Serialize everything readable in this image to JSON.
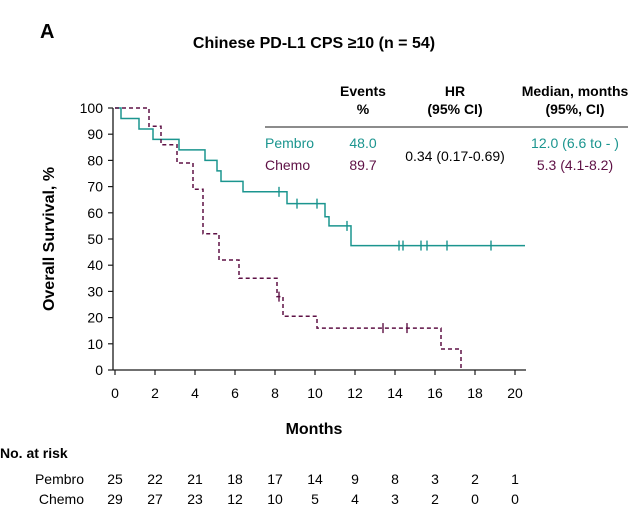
{
  "panel_label": "A",
  "chart_data": {
    "type": "line",
    "subtype": "kaplan-meier",
    "title": "Chinese PD-L1 CPS ≥10 (n = 54)",
    "xlabel": "Months",
    "ylabel": "Overall Survival, %",
    "xlim": [
      0,
      20.5
    ],
    "ylim": [
      0,
      100
    ],
    "xticks": [
      0,
      2,
      4,
      6,
      8,
      10,
      12,
      14,
      16,
      18,
      20
    ],
    "yticks": [
      0,
      10,
      20,
      30,
      40,
      50,
      60,
      70,
      80,
      90,
      100
    ],
    "grid": false,
    "series": [
      {
        "name": "Pembro",
        "color": "#1b958f",
        "line_style": "solid",
        "points": [
          [
            0,
            100
          ],
          [
            0.3,
            100
          ],
          [
            0.3,
            96
          ],
          [
            1.2,
            96
          ],
          [
            1.2,
            92
          ],
          [
            1.9,
            92
          ],
          [
            1.9,
            88
          ],
          [
            3.2,
            88
          ],
          [
            3.2,
            84
          ],
          [
            4.5,
            84
          ],
          [
            4.5,
            80
          ],
          [
            5.1,
            80
          ],
          [
            5.1,
            76
          ],
          [
            5.3,
            76
          ],
          [
            5.3,
            72
          ],
          [
            6.4,
            72
          ],
          [
            6.4,
            68
          ],
          [
            8.6,
            68
          ],
          [
            8.6,
            63.5
          ],
          [
            10.5,
            63.5
          ],
          [
            10.5,
            58.5
          ],
          [
            10.7,
            58.5
          ],
          [
            10.7,
            55
          ],
          [
            11.8,
            55
          ],
          [
            11.8,
            47.5
          ],
          [
            20.5,
            47.5
          ]
        ],
        "censor_x": [
          8.2,
          9.1,
          10.1,
          11.6,
          14.2,
          14.4,
          15.3,
          15.6,
          16.6,
          18.8
        ]
      },
      {
        "name": "Chemo",
        "color": "#5e1045",
        "line_style": "dashed",
        "points": [
          [
            0,
            100
          ],
          [
            1.7,
            100
          ],
          [
            1.7,
            93
          ],
          [
            2.3,
            93
          ],
          [
            2.3,
            86
          ],
          [
            3.1,
            86
          ],
          [
            3.1,
            79
          ],
          [
            3.9,
            79
          ],
          [
            3.9,
            69
          ],
          [
            4.4,
            69
          ],
          [
            4.4,
            52
          ],
          [
            5.2,
            52
          ],
          [
            5.2,
            42
          ],
          [
            6.2,
            42
          ],
          [
            6.2,
            35
          ],
          [
            8.1,
            35
          ],
          [
            8.1,
            28
          ],
          [
            8.4,
            28
          ],
          [
            8.4,
            20.5
          ],
          [
            10.1,
            20.5
          ],
          [
            10.1,
            16
          ],
          [
            16.3,
            16
          ],
          [
            16.3,
            8
          ],
          [
            17.3,
            8
          ],
          [
            17.3,
            0
          ]
        ],
        "censor_x": [
          8.2,
          13.4,
          14.6
        ]
      }
    ],
    "summary_table": {
      "headers": [
        [
          "Events",
          "%"
        ],
        [
          "HR",
          "(95% CI)"
        ],
        [
          "Median, months",
          "(95%, CI)"
        ]
      ],
      "rows": [
        {
          "arm": "Pembro",
          "events_pct": "48.0",
          "median": "12.0 (6.6 to - )"
        },
        {
          "arm": "Chemo",
          "events_pct": "89.7",
          "median": "5.3 (4.1-8.2)"
        }
      ],
      "hr": "0.34 (0.17-0.69)"
    },
    "at_risk": {
      "label": "No. at risk",
      "times": [
        0,
        2,
        4,
        6,
        8,
        10,
        12,
        14,
        16,
        18,
        20
      ],
      "rows": [
        {
          "arm": "Pembro",
          "values": [
            25,
            22,
            21,
            18,
            17,
            14,
            9,
            8,
            3,
            2,
            1
          ]
        },
        {
          "arm": "Chemo",
          "values": [
            29,
            27,
            23,
            12,
            10,
            5,
            4,
            3,
            2,
            0,
            0
          ]
        }
      ]
    }
  }
}
